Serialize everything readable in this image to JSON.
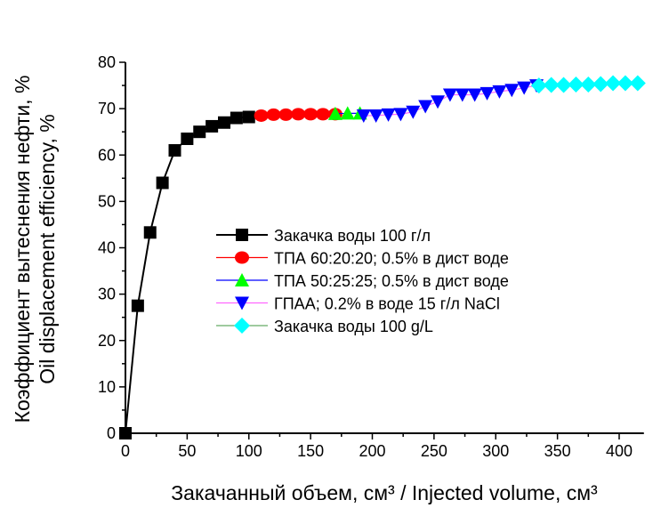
{
  "chart_data": {
    "type": "line",
    "title": "",
    "xlabel": "Закачанный объем, см³ / Injected volume, см³",
    "ylabel_line1": "Коэффициент вытеснения нефти, %",
    "ylabel_line2": "Oil displacement efficiency, %",
    "xlim": [
      0,
      420
    ],
    "ylim": [
      0,
      80
    ],
    "xticks": [
      0,
      50,
      100,
      150,
      200,
      250,
      300,
      350,
      400
    ],
    "yticks": [
      0,
      10,
      20,
      30,
      40,
      50,
      60,
      70,
      80
    ],
    "legend_position": "center",
    "series": [
      {
        "name": "Закачка воды 100 г/л",
        "marker": "square",
        "color": "#000000",
        "line": "#000000",
        "x": [
          0,
          10,
          20,
          30,
          40,
          50,
          60,
          70,
          80,
          90,
          100
        ],
        "y": [
          0,
          27.5,
          43.3,
          54,
          61,
          63.5,
          65,
          66.2,
          67,
          68,
          68.2
        ]
      },
      {
        "name": "ТПА 60:20:20; 0.5% в дист воде",
        "marker": "circle",
        "color": "#ff0000",
        "line": "#ff0000",
        "x": [
          110,
          120,
          130,
          140,
          150,
          160,
          170
        ],
        "y": [
          68.5,
          68.7,
          68.7,
          68.8,
          68.8,
          68.8,
          68.8
        ]
      },
      {
        "name": "ТПА 50:25:25; 0.5% в дист воде",
        "marker": "triangle-up",
        "color": "#00ff00",
        "line": "#0000ff",
        "x": [
          170,
          180,
          190
        ],
        "y": [
          68.9,
          69,
          69
        ]
      },
      {
        "name": "ГПАА; 0.2% в воде 15 г/л NaCl",
        "marker": "triangle-down",
        "color": "#0000ff",
        "line": "#ff66ff",
        "x": [
          193,
          203,
          213,
          223,
          233,
          243,
          253,
          263,
          273,
          283,
          293,
          303,
          313,
          323,
          333
        ],
        "y": [
          68.5,
          68.5,
          68.7,
          68.8,
          69.3,
          70.5,
          71.5,
          73,
          73,
          73,
          73.3,
          73.7,
          74,
          74.5,
          75
        ]
      },
      {
        "name": "Закачка воды 100 g/L",
        "marker": "diamond",
        "color": "#00ffff",
        "line": "#66aa66",
        "x": [
          335,
          345,
          355,
          365,
          375,
          385,
          395,
          405,
          415
        ],
        "y": [
          75,
          75.1,
          75.1,
          75.2,
          75.2,
          75.3,
          75.5,
          75.5,
          75.5
        ]
      }
    ]
  }
}
